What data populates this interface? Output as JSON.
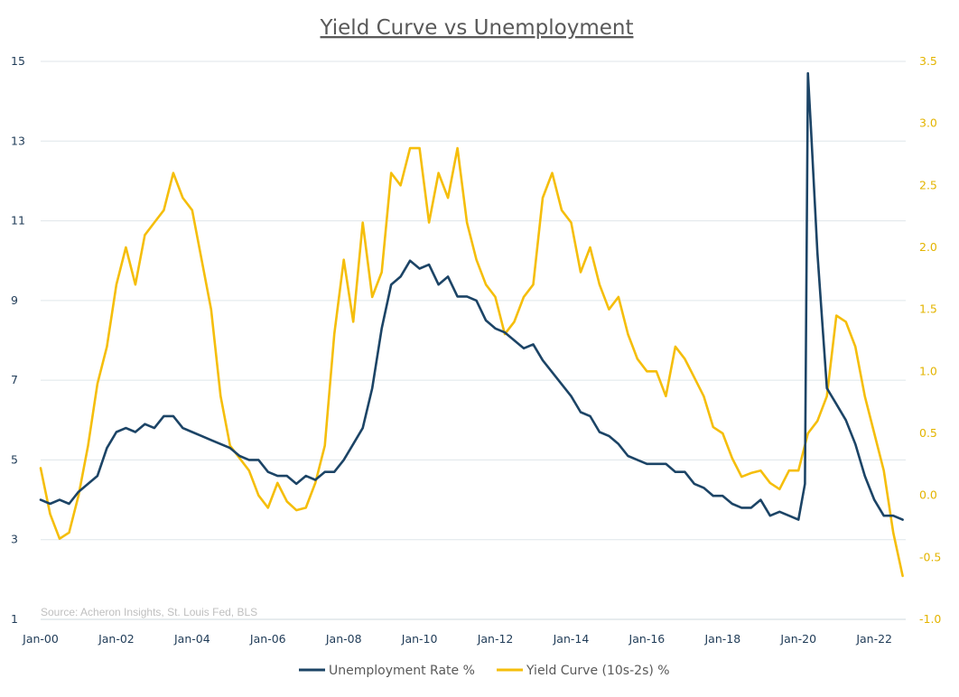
{
  "colors": {
    "unemployment": "#1c4466",
    "yield_curve": "#f5be0b",
    "grid": "#dfe6ea"
  },
  "chart_data": {
    "type": "line",
    "title": "Yield Curve vs Unemployment",
    "source": "Source: Acheron Insights, St. Louis Fed, BLS",
    "x_tick_labels": [
      "Jan-00",
      "Jan-02",
      "Jan-04",
      "Jan-06",
      "Jan-08",
      "Jan-10",
      "Jan-12",
      "Jan-14",
      "Jan-16",
      "Jan-18",
      "Jan-20",
      "Jan-22"
    ],
    "x_range": [
      2000.0,
      2022.83
    ],
    "y_left": {
      "ylim": [
        1,
        15
      ],
      "ticks": [
        "1",
        "3",
        "5",
        "7",
        "9",
        "11",
        "13",
        "15"
      ]
    },
    "y_right": {
      "ylim": [
        -1.0,
        3.5
      ],
      "ticks": [
        "-1.0",
        "-0.5",
        "0.0",
        "0.5",
        "1.0",
        "1.5",
        "2.0",
        "2.5",
        "3.0",
        "3.5"
      ]
    },
    "grid": true,
    "legend": "bottom",
    "series": [
      {
        "name": "Unemployment Rate %",
        "axis": "left",
        "x": [
          2000.0,
          2000.25,
          2000.5,
          2000.75,
          2001.0,
          2001.25,
          2001.5,
          2001.75,
          2002.0,
          2002.25,
          2002.5,
          2002.75,
          2003.0,
          2003.25,
          2003.5,
          2003.75,
          2004.0,
          2004.25,
          2004.5,
          2004.75,
          2005.0,
          2005.25,
          2005.5,
          2005.75,
          2006.0,
          2006.25,
          2006.5,
          2006.75,
          2007.0,
          2007.25,
          2007.5,
          2007.75,
          2008.0,
          2008.25,
          2008.5,
          2008.75,
          2009.0,
          2009.25,
          2009.5,
          2009.75,
          2010.0,
          2010.25,
          2010.5,
          2010.75,
          2011.0,
          2011.25,
          2011.5,
          2011.75,
          2012.0,
          2012.25,
          2012.5,
          2012.75,
          2013.0,
          2013.25,
          2013.5,
          2013.75,
          2014.0,
          2014.25,
          2014.5,
          2014.75,
          2015.0,
          2015.25,
          2015.5,
          2015.75,
          2016.0,
          2016.25,
          2016.5,
          2016.75,
          2017.0,
          2017.25,
          2017.5,
          2017.75,
          2018.0,
          2018.25,
          2018.5,
          2018.75,
          2019.0,
          2019.25,
          2019.5,
          2019.75,
          2020.0,
          2020.17,
          2020.25,
          2020.33,
          2020.5,
          2020.75,
          2021.0,
          2021.25,
          2021.5,
          2021.75,
          2022.0,
          2022.25,
          2022.5,
          2022.75
        ],
        "values": [
          4.0,
          3.9,
          4.0,
          3.9,
          4.2,
          4.4,
          4.6,
          5.3,
          5.7,
          5.8,
          5.7,
          5.9,
          5.8,
          6.1,
          6.1,
          5.8,
          5.7,
          5.6,
          5.5,
          5.4,
          5.3,
          5.1,
          5.0,
          5.0,
          4.7,
          4.6,
          4.6,
          4.4,
          4.6,
          4.5,
          4.7,
          4.7,
          5.0,
          5.4,
          5.8,
          6.8,
          8.3,
          9.4,
          9.6,
          10.0,
          9.8,
          9.9,
          9.4,
          9.6,
          9.1,
          9.1,
          9.0,
          8.5,
          8.3,
          8.2,
          8.0,
          7.8,
          7.9,
          7.5,
          7.2,
          6.9,
          6.6,
          6.2,
          6.1,
          5.7,
          5.6,
          5.4,
          5.1,
          5.0,
          4.9,
          4.9,
          4.9,
          4.7,
          4.7,
          4.4,
          4.3,
          4.1,
          4.1,
          3.9,
          3.8,
          3.8,
          4.0,
          3.6,
          3.7,
          3.6,
          3.5,
          4.4,
          14.7,
          13.3,
          10.2,
          6.8,
          6.4,
          6.0,
          5.4,
          4.6,
          4.0,
          3.6,
          3.6,
          3.5
        ]
      },
      {
        "name": "Yield Curve (10s-2s) %",
        "axis": "right",
        "x": [
          2000.0,
          2000.25,
          2000.5,
          2000.75,
          2001.0,
          2001.25,
          2001.5,
          2001.75,
          2002.0,
          2002.25,
          2002.5,
          2002.75,
          2003.0,
          2003.25,
          2003.5,
          2003.75,
          2004.0,
          2004.25,
          2004.5,
          2004.75,
          2005.0,
          2005.25,
          2005.5,
          2005.75,
          2006.0,
          2006.25,
          2006.5,
          2006.75,
          2007.0,
          2007.25,
          2007.5,
          2007.75,
          2008.0,
          2008.25,
          2008.5,
          2008.75,
          2009.0,
          2009.25,
          2009.5,
          2009.75,
          2010.0,
          2010.25,
          2010.5,
          2010.75,
          2011.0,
          2011.25,
          2011.5,
          2011.75,
          2012.0,
          2012.25,
          2012.5,
          2012.75,
          2013.0,
          2013.25,
          2013.5,
          2013.75,
          2014.0,
          2014.25,
          2014.5,
          2014.75,
          2015.0,
          2015.25,
          2015.5,
          2015.75,
          2016.0,
          2016.25,
          2016.5,
          2016.75,
          2017.0,
          2017.25,
          2017.5,
          2017.75,
          2018.0,
          2018.25,
          2018.5,
          2018.75,
          2019.0,
          2019.25,
          2019.5,
          2019.75,
          2020.0,
          2020.25,
          2020.5,
          2020.75,
          2021.0,
          2021.25,
          2021.5,
          2021.75,
          2022.0,
          2022.25,
          2022.5,
          2022.75
        ],
        "values": [
          0.22,
          -0.15,
          -0.35,
          -0.3,
          0.0,
          0.4,
          0.9,
          1.2,
          1.7,
          2.0,
          1.7,
          2.1,
          2.2,
          2.3,
          2.6,
          2.4,
          2.3,
          1.9,
          1.5,
          0.8,
          0.4,
          0.3,
          0.2,
          0.0,
          -0.1,
          0.1,
          -0.05,
          -0.12,
          -0.1,
          0.1,
          0.4,
          1.3,
          1.9,
          1.4,
          2.2,
          1.6,
          1.8,
          2.6,
          2.5,
          2.8,
          2.8,
          2.2,
          2.6,
          2.4,
          2.8,
          2.2,
          1.9,
          1.7,
          1.6,
          1.3,
          1.4,
          1.6,
          1.7,
          2.4,
          2.6,
          2.3,
          2.2,
          1.8,
          2.0,
          1.7,
          1.5,
          1.6,
          1.3,
          1.1,
          1.0,
          1.0,
          0.8,
          1.2,
          1.1,
          0.95,
          0.8,
          0.55,
          0.5,
          0.3,
          0.15,
          0.18,
          0.2,
          0.1,
          0.05,
          0.2,
          0.2,
          0.5,
          0.6,
          0.8,
          1.45,
          1.4,
          1.2,
          0.8,
          0.5,
          0.2,
          -0.3,
          -0.65
        ]
      }
    ]
  }
}
